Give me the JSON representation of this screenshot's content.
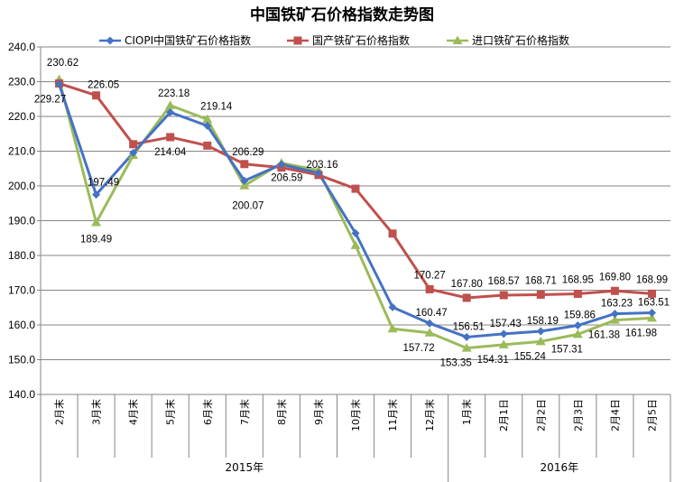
{
  "chart_data": {
    "type": "line",
    "title": "中国铁矿石价格指数走势图",
    "xlabel": "",
    "ylabel": "",
    "ylim": [
      140,
      240
    ],
    "y_tick_step": 10,
    "y_tick_labels": [
      "140.0",
      "150.0",
      "160.0",
      "170.0",
      "180.0",
      "190.0",
      "200.0",
      "210.0",
      "220.0",
      "230.0",
      "240.0"
    ],
    "categories": [
      "2月末",
      "3月末",
      "4月末",
      "5月末",
      "6月末",
      "7月末",
      "8月末",
      "9月末",
      "10月末",
      "11月末",
      "12月末",
      "1月末",
      "2月1日",
      "2月2日",
      "2月3日",
      "2月4日",
      "2月5日"
    ],
    "year_groups": [
      {
        "label": "2015年",
        "count": 11
      },
      {
        "label": "2016年",
        "count": 6
      }
    ],
    "grid": true,
    "legend_position": "top",
    "series": [
      {
        "name": "CIOPI中国铁矿石价格指数",
        "color": "#4472C4",
        "marker": "diamond",
        "values": [
          229.27,
          197.49,
          209.5,
          221.2,
          217.3,
          201.5,
          206.2,
          203.7,
          186.4,
          165.1,
          160.47,
          156.51,
          157.43,
          158.19,
          159.86,
          163.23,
          163.51
        ],
        "labels": [
          "229.27",
          "197.49",
          null,
          null,
          null,
          null,
          null,
          null,
          null,
          null,
          "160.47",
          "156.51",
          "157.43",
          "158.19",
          "159.86",
          "163.23",
          "163.51"
        ]
      },
      {
        "name": "国产铁矿石价格指数",
        "color": "#C0504D",
        "marker": "square",
        "values": [
          229.5,
          226.05,
          212.0,
          214.04,
          211.6,
          206.29,
          205.3,
          203.16,
          199.2,
          186.3,
          170.27,
          167.8,
          168.57,
          168.71,
          168.95,
          169.8,
          168.99
        ],
        "labels": [
          null,
          "226.05",
          null,
          "214.04",
          null,
          "206.29",
          null,
          "203.16",
          null,
          null,
          "170.27",
          "167.80",
          "168.57",
          "168.71",
          "168.95",
          "169.80",
          "168.99"
        ]
      },
      {
        "name": "进口铁矿石价格指数",
        "color": "#9BBB59",
        "marker": "triangle",
        "values": [
          230.62,
          189.49,
          208.8,
          223.18,
          219.14,
          200.07,
          206.59,
          204.5,
          182.9,
          158.9,
          157.72,
          153.35,
          154.31,
          155.24,
          157.31,
          161.38,
          161.98
        ],
        "labels": [
          "230.62",
          "189.49",
          null,
          "223.18",
          "219.14",
          "200.07",
          "206.59",
          null,
          null,
          null,
          "157.72",
          "153.35",
          "154.31",
          "155.24",
          "157.31",
          "161.38",
          "161.98"
        ]
      }
    ]
  }
}
